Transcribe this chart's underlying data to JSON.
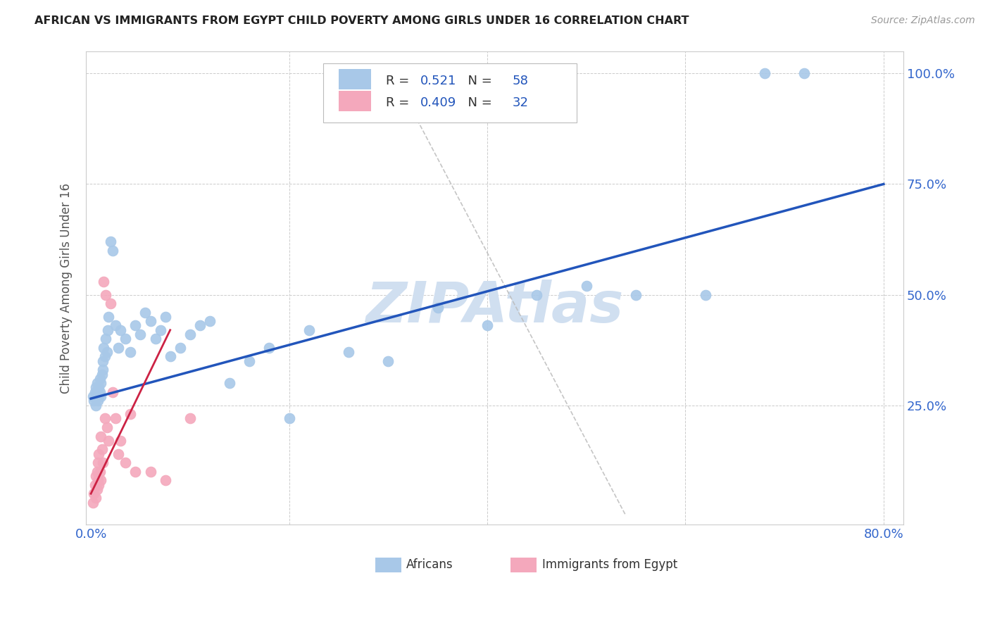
{
  "title": "AFRICAN VS IMMIGRANTS FROM EGYPT CHILD POVERTY AMONG GIRLS UNDER 16 CORRELATION CHART",
  "source": "Source: ZipAtlas.com",
  "ylabel": "Child Poverty Among Girls Under 16",
  "xlim": [
    -0.005,
    0.82
  ],
  "ylim": [
    -0.02,
    1.05
  ],
  "xtick_left": 0.0,
  "xtick_right": 0.8,
  "xtick_left_label": "0.0%",
  "xtick_right_label": "80.0%",
  "yticks": [
    0.0,
    0.25,
    0.5,
    0.75,
    1.0
  ],
  "yticklabels": [
    "",
    "25.0%",
    "50.0%",
    "75.0%",
    "100.0%"
  ],
  "blue_R": 0.521,
  "blue_N": 58,
  "pink_R": 0.409,
  "pink_N": 32,
  "blue_color": "#A8C8E8",
  "pink_color": "#F4A8BC",
  "blue_line_color": "#2255BB",
  "pink_line_color": "#CC2244",
  "ref_line_color": "#BBBBBB",
  "watermark": "ZIPAtlas",
  "watermark_color": "#D0DFF0",
  "legend_R_color": "#2255BB",
  "legend_N_color": "#2255BB",
  "blue_scatter_x": [
    0.002,
    0.003,
    0.004,
    0.005,
    0.005,
    0.006,
    0.006,
    0.007,
    0.007,
    0.008,
    0.008,
    0.009,
    0.009,
    0.01,
    0.01,
    0.011,
    0.012,
    0.012,
    0.013,
    0.014,
    0.015,
    0.016,
    0.017,
    0.018,
    0.02,
    0.022,
    0.025,
    0.028,
    0.03,
    0.035,
    0.04,
    0.045,
    0.05,
    0.055,
    0.06,
    0.065,
    0.07,
    0.075,
    0.08,
    0.09,
    0.1,
    0.11,
    0.12,
    0.14,
    0.16,
    0.18,
    0.2,
    0.22,
    0.26,
    0.3,
    0.35,
    0.4,
    0.45,
    0.5,
    0.55,
    0.62,
    0.68,
    0.72
  ],
  "blue_scatter_y": [
    0.27,
    0.26,
    0.28,
    0.25,
    0.29,
    0.27,
    0.3,
    0.26,
    0.28,
    0.27,
    0.29,
    0.28,
    0.31,
    0.3,
    0.27,
    0.32,
    0.35,
    0.33,
    0.38,
    0.36,
    0.4,
    0.37,
    0.42,
    0.45,
    0.62,
    0.6,
    0.43,
    0.38,
    0.42,
    0.4,
    0.37,
    0.43,
    0.41,
    0.46,
    0.44,
    0.4,
    0.42,
    0.45,
    0.36,
    0.38,
    0.41,
    0.43,
    0.44,
    0.3,
    0.35,
    0.38,
    0.22,
    0.42,
    0.37,
    0.35,
    0.47,
    0.43,
    0.5,
    0.52,
    0.5,
    0.5,
    1.0,
    1.0
  ],
  "pink_scatter_x": [
    0.002,
    0.003,
    0.004,
    0.005,
    0.005,
    0.006,
    0.006,
    0.007,
    0.007,
    0.008,
    0.008,
    0.009,
    0.01,
    0.01,
    0.011,
    0.012,
    0.013,
    0.014,
    0.015,
    0.016,
    0.018,
    0.02,
    0.022,
    0.025,
    0.028,
    0.03,
    0.035,
    0.04,
    0.045,
    0.06,
    0.075,
    0.1
  ],
  "pink_scatter_y": [
    0.03,
    0.05,
    0.07,
    0.04,
    0.09,
    0.06,
    0.1,
    0.08,
    0.12,
    0.07,
    0.14,
    0.1,
    0.08,
    0.18,
    0.15,
    0.12,
    0.53,
    0.22,
    0.5,
    0.2,
    0.17,
    0.48,
    0.28,
    0.22,
    0.14,
    0.17,
    0.12,
    0.23,
    0.1,
    0.1,
    0.08,
    0.22
  ],
  "blue_line_x0": 0.0,
  "blue_line_y0": 0.265,
  "blue_line_x1": 0.8,
  "blue_line_y1": 0.75,
  "pink_line_x0": 0.0,
  "pink_line_y0": 0.05,
  "pink_line_x1": 0.08,
  "pink_line_y1": 0.42,
  "ref_line_x0": 0.3,
  "ref_line_y0": 1.02,
  "ref_line_x1": 0.54,
  "ref_line_y1": 0.0
}
